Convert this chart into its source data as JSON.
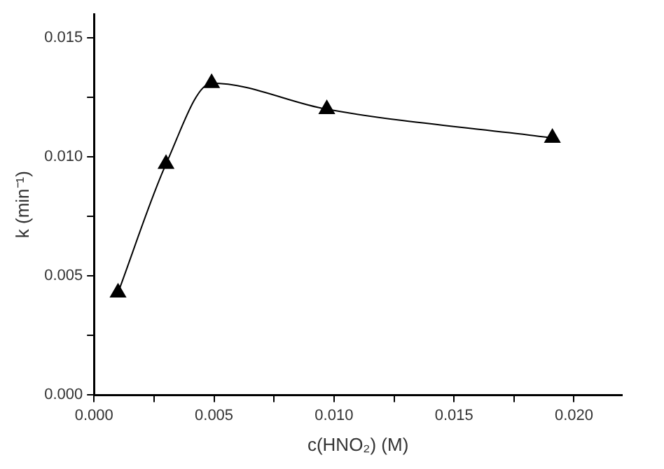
{
  "chart_data": {
    "type": "line",
    "xlabel": "c(HNO₂) (M)",
    "ylabel": "k (min⁻¹)",
    "x": [
      0.001,
      0.003,
      0.0049,
      0.0097,
      0.0191
    ],
    "series": [
      {
        "color": "#000000",
        "values": [
          0.0043,
          0.0097,
          0.0131,
          0.012,
          0.0108
        ]
      }
    ],
    "xlim": [
      0,
      0.022
    ],
    "xticks": [
      "0.000",
      {
        "value": 0.0025,
        "label": null
      },
      {
        "value": 0.005,
        "label": "0.005"
      },
      {
        "value": 0.0075,
        "label": null
      },
      {
        "value": 0.01,
        "label": "0.010"
      },
      {
        "value": 0.0125,
        "label": null
      },
      {
        "value": 0.015,
        "label": "0.015"
      },
      {
        "value": 0.0175,
        "label": null
      },
      {
        "value": 0.02,
        "label": "0.020"
      }
    ],
    "ylim": [
      0,
      0.016
    ],
    "yticks": [
      {
        "value": 0,
        "label": "0.000"
      },
      {
        "value": 0.0025,
        "label": null
      },
      {
        "value": 0.005,
        "label": "0.005"
      },
      {
        "value": 0.0075,
        "label": null
      },
      {
        "value": 0.01,
        "label": "0.010"
      },
      {
        "value": 0.0125,
        "label": null
      },
      {
        "value": 0.015,
        "label": "0.015"
      }
    ],
    "marker": "triangle",
    "line_style": "solid",
    "grid": false,
    "legend": false
  }
}
